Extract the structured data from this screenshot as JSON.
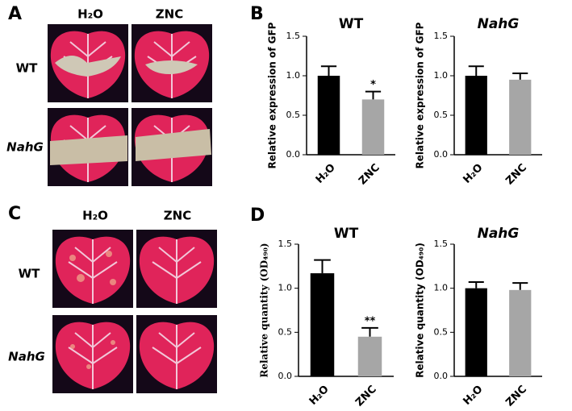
{
  "panels": {
    "a": "A",
    "b": "B",
    "c": "C",
    "d": "D"
  },
  "photo_labels": {
    "a_cols": [
      "H₂O",
      "ZNC"
    ],
    "a_rows": [
      "WT",
      "NahG"
    ],
    "c_cols": [
      "H₂O",
      "ZNC"
    ],
    "c_rows": [
      "WT",
      "NahG"
    ]
  },
  "chart_data": [
    {
      "type": "bar",
      "title": "WT",
      "y_label": "Relative expression of GFP",
      "categories": [
        "H₂O",
        "ZNC"
      ],
      "values": [
        1.0,
        0.7
      ],
      "errors": [
        0.12,
        0.1
      ],
      "annotations": [
        null,
        "*"
      ],
      "colors": [
        "#000000",
        "#a6a6a6"
      ],
      "ylim": [
        0,
        1.5
      ],
      "yticks": [
        {
          "value": 0,
          "label": "0.0"
        },
        0.5,
        {
          "value": 1,
          "label": "1.0"
        },
        {
          "value": 1.5,
          "label": "1.5"
        }
      ]
    },
    {
      "type": "bar",
      "title": "NahG",
      "y_label": "Relative expression of GFP",
      "categories": [
        "H₂O",
        "ZNC"
      ],
      "values": [
        1.0,
        0.95
      ],
      "errors": [
        0.12,
        0.08
      ],
      "colors": [
        "#000000",
        "#a6a6a6"
      ],
      "ylim": [
        0,
        1.5
      ],
      "yticks": [
        {
          "value": 0,
          "label": "0.0"
        },
        0.5,
        {
          "value": 1,
          "label": "1.0"
        },
        {
          "value": 1.5,
          "label": "1.5"
        }
      ]
    },
    {
      "type": "bar",
      "title": "WT",
      "y_label": "Relative quantity (OD₄₉₀)",
      "categories": [
        "H₂O",
        "ZNC"
      ],
      "values": [
        1.17,
        0.45
      ],
      "errors": [
        0.15,
        0.1
      ],
      "annotations": [
        null,
        "**"
      ],
      "colors": [
        "#000000",
        "#a6a6a6"
      ],
      "ylim": [
        0,
        1.5
      ],
      "yticks": [
        {
          "value": 0,
          "label": "0.0"
        },
        0.5,
        {
          "value": 1,
          "label": "1.0"
        },
        {
          "value": 1.5,
          "label": "1.5"
        }
      ]
    },
    {
      "type": "bar",
      "title": "NahG",
      "y_label": "Relative quantity (OD₄₉₀)",
      "categories": [
        "H₂O",
        "ZNC"
      ],
      "values": [
        1.0,
        0.98
      ],
      "errors": [
        0.07,
        0.08
      ],
      "colors": [
        "#000000",
        "#a6a6a6"
      ],
      "ylim": [
        0,
        1.5
      ],
      "yticks": [
        {
          "value": 0,
          "label": "0.0"
        },
        0.5,
        {
          "value": 1,
          "label": "1.0"
        },
        {
          "value": 1.5,
          "label": "1.5"
        }
      ]
    }
  ]
}
